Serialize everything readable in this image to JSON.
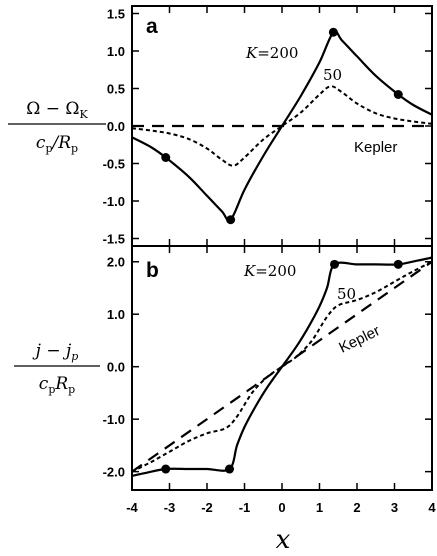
{
  "chart_data": [
    {
      "type": "line",
      "panel_label": "a",
      "ylabel_numerator": "Ω − Ω",
      "ylabel_numerator_sub": "K",
      "ylabel_denominator": "c",
      "ylabel_denominator_sub1": "p",
      "ylabel_denominator_mid": "/R",
      "ylabel_denominator_sub2": "p",
      "xlim": [
        -4,
        4
      ],
      "ylim": [
        -1.6,
        1.6
      ],
      "yticks": [
        "1.5",
        "1.0",
        "0.5",
        "0.0",
        "-0.5",
        "-1.0",
        "-1.5"
      ],
      "ytick_values": [
        1.5,
        1.0,
        0.5,
        0.0,
        -0.5,
        -1.0,
        -1.5
      ],
      "annotations": {
        "k200": "K=200",
        "k50": "50",
        "kepler": "Kepler"
      },
      "series": [
        {
          "style": "solid",
          "x": [
            -4.0,
            -3.5,
            -3.1,
            -2.5,
            -2.0,
            -1.6,
            -1.37,
            -1.0,
            -0.5,
            0.0,
            0.5,
            1.0,
            1.37,
            1.6,
            2.0,
            2.5,
            3.1,
            3.5,
            4.0
          ],
          "y": [
            -0.15,
            -0.28,
            -0.42,
            -0.67,
            -0.93,
            -1.14,
            -1.25,
            -0.85,
            -0.4,
            0.0,
            0.4,
            0.85,
            1.25,
            1.14,
            0.93,
            0.67,
            0.42,
            0.28,
            0.15
          ],
          "markers_x": [
            -3.1,
            -1.37,
            1.37,
            3.1
          ],
          "markers_y": [
            -0.42,
            -1.25,
            1.25,
            0.42
          ]
        },
        {
          "style": "dotted",
          "x": [
            -4.0,
            -3.5,
            -3.0,
            -2.5,
            -2.0,
            -1.6,
            -1.3,
            -1.0,
            -0.5,
            0.0,
            0.5,
            1.0,
            1.3,
            1.6,
            2.0,
            2.5,
            3.0,
            3.5,
            4.0
          ],
          "y": [
            -0.03,
            -0.06,
            -0.1,
            -0.17,
            -0.3,
            -0.45,
            -0.53,
            -0.42,
            -0.18,
            0.0,
            0.18,
            0.42,
            0.53,
            0.45,
            0.3,
            0.17,
            0.1,
            0.06,
            0.03
          ]
        },
        {
          "style": "dashed",
          "x": [
            -4.0,
            4.0
          ],
          "y": [
            0.0,
            0.0
          ]
        }
      ]
    },
    {
      "type": "line",
      "panel_label": "b",
      "ylabel_numerator": "j − j",
      "ylabel_numerator_sub": "p",
      "ylabel_denominator": "c",
      "ylabel_denominator_sub1": "p",
      "ylabel_denominator_mid": "R",
      "ylabel_denominator_sub2": "p",
      "xlabel": "x",
      "xlim": [
        -4,
        4
      ],
      "ylim": [
        -2.35,
        2.3
      ],
      "xticks": [
        "-4",
        "-3",
        "-2",
        "-1",
        "0",
        "1",
        "2",
        "3",
        "4"
      ],
      "xtick_values": [
        -4,
        -3,
        -2,
        -1,
        0,
        1,
        2,
        3,
        4
      ],
      "yticks": [
        "2.0",
        "1.0",
        "0.0",
        "-1.0",
        "-2.0"
      ],
      "ytick_values": [
        2.0,
        1.0,
        0.0,
        -1.0,
        -2.0
      ],
      "annotations": {
        "k200": "K=200",
        "k50": "50",
        "kepler": "Kepler"
      },
      "series": [
        {
          "style": "solid",
          "x": [
            -4.0,
            -3.6,
            -3.1,
            -2.5,
            -2.0,
            -1.4,
            -1.2,
            -1.0,
            -0.7,
            -0.4,
            0.0,
            0.4,
            0.7,
            1.0,
            1.2,
            1.4,
            2.0,
            2.5,
            3.1,
            3.6,
            4.0
          ],
          "y": [
            -2.08,
            -2.02,
            -1.95,
            -1.95,
            -1.95,
            -1.95,
            -1.5,
            -1.15,
            -0.75,
            -0.4,
            0.0,
            0.4,
            0.75,
            1.15,
            1.5,
            1.95,
            1.95,
            1.95,
            1.95,
            2.02,
            2.08
          ],
          "markers_x": [
            -3.1,
            -1.4,
            1.4,
            3.1
          ],
          "markers_y": [
            -1.95,
            -1.95,
            1.95,
            1.95
          ]
        },
        {
          "style": "dotted",
          "x": [
            -4.0,
            -3.5,
            -3.0,
            -2.5,
            -2.0,
            -1.5,
            -1.2,
            -0.8,
            -0.4,
            0.0,
            0.4,
            0.8,
            1.2,
            1.5,
            2.0,
            2.5,
            3.0,
            3.5,
            4.0
          ],
          "y": [
            -2.0,
            -1.82,
            -1.62,
            -1.42,
            -1.27,
            -1.17,
            -0.95,
            -0.5,
            -0.2,
            0.0,
            0.2,
            0.5,
            0.95,
            1.17,
            1.27,
            1.42,
            1.62,
            1.82,
            2.0
          ],
          "label_x": 1.55,
          "label_y": 1.45
        },
        {
          "style": "dashed",
          "x": [
            -4.0,
            4.0
          ],
          "y": [
            -2.0,
            2.0
          ]
        }
      ]
    }
  ]
}
